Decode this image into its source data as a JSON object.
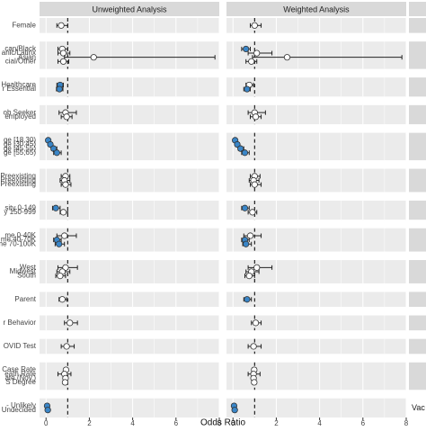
{
  "chart_data": {
    "type": "scatter",
    "subtype": "forest-plot (odds ratio with confidence intervals)",
    "panels": [
      "Unweighted Analysis",
      "Weighted Analysis"
    ],
    "xlabel": "Odds Ratio",
    "xlim": [
      -0.3,
      8
    ],
    "xticks": [
      0,
      2,
      4,
      6,
      8
    ],
    "reference_line": 1,
    "grid": true,
    "right_strip_label": "Vac",
    "colors": {
      "significant": "#3a86c8",
      "not_significant": "#ffffff",
      "panel_bg": "#ebebeb",
      "strip_bg": "#d9d9d9",
      "grid": "#ffffff"
    },
    "groups": [
      {
        "rows": [
          {
            "label": "Female",
            "u": [
              0.7,
              0.5,
              1.0,
              false
            ],
            "w": [
              1.0,
              0.8,
              1.3,
              false
            ]
          }
        ]
      },
      {
        "rows": [
          {
            "label": "can/Black",
            "u": [
              0.75,
              0.55,
              1.0,
              false
            ],
            "w": [
              0.6,
              0.4,
              0.8,
              true
            ]
          },
          {
            "label": "anic/Latinx",
            "u": [
              0.8,
              0.55,
              1.1,
              false
            ],
            "w": [
              1.1,
              0.7,
              1.8,
              false
            ]
          },
          {
            "label": "Asian",
            "u": [
              2.2,
              0.85,
              7.8,
              false
            ],
            "w": [
              2.5,
              0.9,
              7.8,
              false
            ]
          },
          {
            "label": "cial/Other",
            "u": [
              0.8,
              0.55,
              1.05,
              false
            ],
            "w": [
              0.85,
              0.6,
              1.1,
              false
            ]
          }
        ]
      },
      {
        "rows": [
          {
            "label": "Healthcare",
            "u": [
              0.65,
              0.5,
              0.8,
              true
            ],
            "w": [
              0.75,
              0.6,
              0.95,
              false
            ]
          },
          {
            "label": "r Essential",
            "u": [
              0.62,
              0.48,
              0.78,
              true
            ],
            "w": [
              0.65,
              0.5,
              0.8,
              true
            ]
          }
        ]
      },
      {
        "rows": [
          {
            "label": "ob Seeker",
            "u": [
              0.9,
              0.6,
              1.4,
              false
            ],
            "w": [
              1.0,
              0.7,
              1.5,
              false
            ]
          },
          {
            "label": "employed",
            "u": [
              0.95,
              0.7,
              1.2,
              false
            ],
            "w": [
              1.05,
              0.8,
              1.3,
              false
            ]
          }
        ]
      },
      {
        "rows": [
          {
            "label": "ge [18,30)",
            "u": [
              0.1,
              0.05,
              0.15,
              true
            ],
            "w": [
              0.1,
              0.05,
              0.15,
              true
            ]
          },
          {
            "label": "ge [30,45)",
            "u": [
              0.2,
              0.12,
              0.3,
              true
            ],
            "w": [
              0.2,
              0.12,
              0.3,
              true
            ]
          },
          {
            "label": "ge [45,55)",
            "u": [
              0.35,
              0.25,
              0.5,
              true
            ],
            "w": [
              0.35,
              0.25,
              0.5,
              true
            ]
          },
          {
            "label": "ge [55,65)",
            "u": [
              0.5,
              0.35,
              0.7,
              true
            ],
            "w": [
              0.55,
              0.4,
              0.75,
              true
            ]
          }
        ]
      },
      {
        "rows": [
          {
            "label": "Preexisting",
            "u": [
              0.9,
              0.7,
              1.1,
              false
            ],
            "w": [
              1.0,
              0.8,
              1.25,
              false
            ]
          },
          {
            "label": "Preexisting",
            "u": [
              0.85,
              0.65,
              1.1,
              false
            ],
            "w": [
              0.95,
              0.75,
              1.2,
              false
            ]
          },
          {
            "label": "Preexisting",
            "u": [
              0.9,
              0.7,
              1.15,
              false
            ],
            "w": [
              1.0,
              0.8,
              1.3,
              false
            ]
          }
        ]
      },
      {
        "rows": [
          {
            "label": "sity 0-149",
            "u": [
              0.45,
              0.3,
              0.65,
              true
            ],
            "w": [
              0.55,
              0.4,
              0.75,
              true
            ]
          },
          {
            "label": "y 150-999",
            "u": [
              0.8,
              0.65,
              1.0,
              false
            ],
            "w": [
              0.9,
              0.7,
              1.1,
              false
            ]
          }
        ]
      },
      {
        "rows": [
          {
            "label": "me 0-40K",
            "u": [
              0.85,
              0.5,
              1.4,
              false
            ],
            "w": [
              0.8,
              0.5,
              1.3,
              false
            ]
          },
          {
            "label": "me 40-70K",
            "u": [
              0.5,
              0.35,
              0.7,
              true
            ],
            "w": [
              0.55,
              0.4,
              0.75,
              true
            ]
          },
          {
            "label": "me 70-100K",
            "u": [
              0.6,
              0.42,
              0.85,
              true
            ],
            "w": [
              0.6,
              0.45,
              0.85,
              true
            ]
          }
        ]
      },
      {
        "rows": [
          {
            "label": "West",
            "u": [
              0.9,
              0.55,
              1.45,
              false
            ],
            "w": [
              1.1,
              0.7,
              1.8,
              false
            ]
          },
          {
            "label": "Midwest",
            "u": [
              0.75,
              0.5,
              1.1,
              false
            ],
            "w": [
              0.85,
              0.6,
              1.2,
              false
            ]
          },
          {
            "label": "South",
            "u": [
              0.65,
              0.45,
              0.9,
              false
            ],
            "w": [
              0.75,
              0.55,
              1.0,
              false
            ]
          }
        ]
      },
      {
        "rows": [
          {
            "label": "Parent",
            "u": [
              0.75,
              0.6,
              0.95,
              false
            ],
            "w": [
              0.65,
              0.5,
              0.85,
              true
            ]
          }
        ]
      },
      {
        "rows": [
          {
            "label": "r Behavior",
            "u": [
              1.1,
              0.85,
              1.45,
              false
            ],
            "w": [
              1.05,
              0.85,
              1.3,
              false
            ]
          }
        ]
      },
      {
        "rows": [
          {
            "label": "OVID Test",
            "u": [
              0.95,
              0.7,
              1.3,
              false
            ],
            "w": [
              0.95,
              0.7,
              1.3,
              false
            ]
          }
        ]
      },
      {
        "rows": [
          {
            "label": "Case Rate",
            "u": [
              0.92,
              0.85,
              1.0,
              false
            ],
            "w": [
              0.98,
              0.88,
              1.08,
              false
            ]
          },
          {
            "label": "eath Rate",
            "u": [
              0.85,
              0.55,
              1.15,
              false
            ],
            "w": [
              0.95,
              0.7,
              1.25,
              false
            ]
          },
          {
            "label": "ate (Nov.)",
            "u": [
              0.9,
              0.82,
              0.98,
              false
            ],
            "w": [
              0.95,
              0.88,
              1.03,
              false
            ]
          },
          {
            "label": "S Degree",
            "u": [
              0.88,
              0.8,
              0.96,
              false
            ],
            "w": [
              0.98,
              0.9,
              1.06,
              false
            ]
          }
        ]
      },
      {
        "rows": [
          {
            "label": "- Unlikely",
            "u": [
              0.05,
              0.02,
              0.08,
              true
            ],
            "w": [
              0.05,
              0.02,
              0.08,
              true
            ]
          },
          {
            "label": "Undecided",
            "u": [
              0.08,
              0.04,
              0.12,
              true
            ],
            "w": [
              0.08,
              0.04,
              0.12,
              true
            ]
          }
        ]
      }
    ]
  }
}
